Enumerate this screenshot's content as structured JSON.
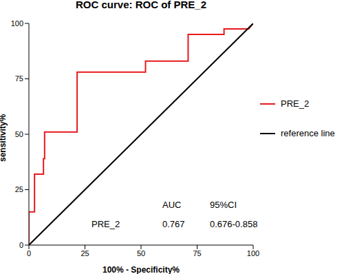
{
  "chart_data": {
    "type": "line",
    "title": "ROC curve: ROC of PRE_2",
    "x_label": "100% - Specificity%",
    "y_label": "sensitivity%",
    "xlim": [
      0,
      100
    ],
    "xticks": [
      0,
      25,
      50,
      75,
      100
    ],
    "ylim": [
      0,
      100
    ],
    "yticks": [
      0,
      25,
      50,
      75,
      100
    ],
    "grid": false,
    "legend": "right",
    "series": [
      {
        "name": "PRE_2",
        "color": "#e8191c",
        "x": [
          0,
          0,
          2.5,
          2.5,
          6.5,
          6.5,
          7,
          7,
          21.5,
          21.5,
          52,
          52,
          71,
          71,
          87,
          87,
          98,
          100
        ],
        "values": [
          0,
          15,
          15,
          32,
          32,
          39,
          39,
          51,
          51,
          78,
          78,
          83,
          83,
          95,
          95,
          97.5,
          97.5,
          100
        ]
      },
      {
        "name": "reference line",
        "color": "#000000",
        "x": [
          0,
          100
        ],
        "values": [
          0,
          100
        ]
      }
    ],
    "annotations": [
      "AUC",
      "95%CI",
      "PRE_2",
      "0.767",
      "0.676-0.858"
    ]
  }
}
